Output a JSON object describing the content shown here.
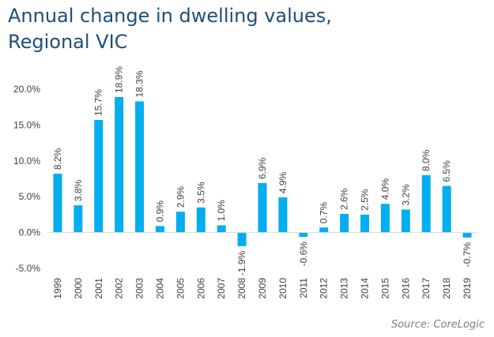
{
  "chart_data": {
    "type": "bar",
    "title_lines": [
      "Annual change in dwelling values,",
      "Regional VIC"
    ],
    "source": "Source: CoreLogic",
    "xlabel": "",
    "ylabel": "",
    "ylim": [
      -5,
      20
    ],
    "yticks": [
      -5,
      0,
      5,
      10,
      15,
      20
    ],
    "ytick_labels": [
      "-5.0%",
      "0.0%",
      "5.0%",
      "10.0%",
      "15.0%",
      "20.0%"
    ],
    "grid": false,
    "legend": "none",
    "bar_color": "#00aeef",
    "categories": [
      "1999",
      "2000",
      "2001",
      "2002",
      "2003",
      "2004",
      "2005",
      "2006",
      "2007",
      "2008",
      "2009",
      "2010",
      "2011",
      "2012",
      "2013",
      "2014",
      "2015",
      "2016",
      "2017",
      "2018",
      "2019"
    ],
    "values": [
      8.2,
      3.8,
      15.7,
      18.9,
      18.3,
      0.9,
      2.9,
      3.5,
      1.0,
      -1.9,
      6.9,
      4.9,
      -0.6,
      0.7,
      2.6,
      2.5,
      4.0,
      3.2,
      8.0,
      6.5,
      -0.7
    ],
    "data_labels": [
      "8.2%",
      "3.8%",
      "15.7%",
      "18.9%",
      "18.3%",
      "0.9%",
      "2.9%",
      "3.5%",
      "1.0%",
      "-1.9%",
      "6.9%",
      "4.9%",
      "-0.6%",
      "0.7%",
      "2.6%",
      "2.5%",
      "4.0%",
      "3.2%",
      "8.0%",
      "6.5%",
      "-0.7%"
    ]
  }
}
